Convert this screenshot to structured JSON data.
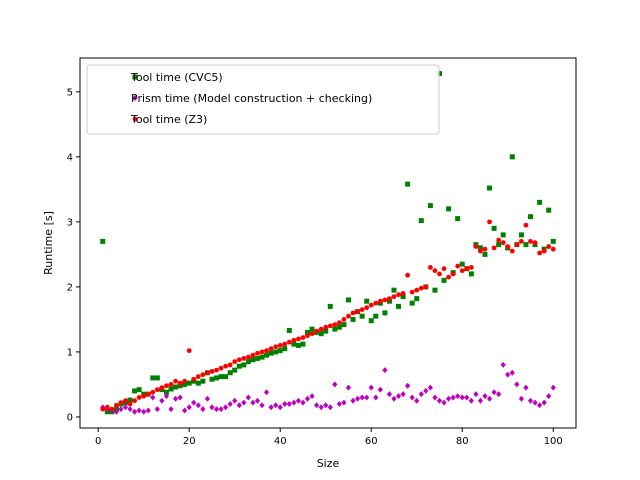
{
  "chart_data": {
    "type": "scatter",
    "xlabel": "Size",
    "ylabel": "Runtime [s]",
    "xlim": [
      -4,
      105
    ],
    "ylim": [
      -0.17,
      5.52
    ],
    "xticks": [
      0,
      20,
      40,
      60,
      80,
      100
    ],
    "yticks": [
      0,
      1,
      2,
      3,
      4,
      5
    ],
    "grid": false,
    "legend_position": "top-left",
    "series": [
      {
        "name": "Tool time (CVC5)",
        "marker": "square",
        "color": "#008000",
        "x": [
          1,
          2,
          3,
          4,
          5,
          6,
          7,
          8,
          9,
          10,
          11,
          12,
          13,
          14,
          15,
          16,
          17,
          18,
          19,
          20,
          21,
          22,
          23,
          24,
          25,
          26,
          27,
          28,
          29,
          30,
          31,
          32,
          33,
          34,
          35,
          36,
          37,
          38,
          39,
          40,
          41,
          42,
          43,
          44,
          45,
          46,
          47,
          48,
          49,
          50,
          51,
          52,
          53,
          54,
          55,
          56,
          57,
          58,
          59,
          60,
          61,
          62,
          63,
          64,
          65,
          66,
          67,
          68,
          69,
          70,
          71,
          72,
          73,
          74,
          75,
          76,
          77,
          78,
          79,
          80,
          81,
          82,
          83,
          84,
          85,
          86,
          87,
          88,
          89,
          90,
          91,
          92,
          93,
          94,
          95,
          96,
          97,
          98,
          99,
          100
        ],
        "y": [
          2.7,
          0.08,
          0.08,
          0.12,
          0.2,
          0.22,
          0.26,
          0.4,
          0.42,
          0.35,
          0.35,
          0.6,
          0.6,
          0.42,
          0.38,
          0.43,
          0.46,
          0.48,
          0.5,
          0.52,
          0.55,
          0.52,
          0.55,
          0.68,
          0.58,
          0.6,
          0.62,
          0.62,
          0.68,
          0.72,
          0.78,
          0.8,
          0.85,
          0.88,
          0.9,
          0.92,
          0.95,
          0.98,
          1.0,
          1.02,
          1.05,
          1.33,
          1.12,
          1.1,
          1.12,
          1.3,
          1.35,
          1.3,
          1.28,
          1.32,
          1.7,
          1.35,
          1.38,
          1.42,
          1.8,
          1.5,
          1.62,
          1.55,
          1.78,
          1.48,
          1.55,
          1.75,
          1.6,
          1.78,
          1.95,
          1.7,
          1.85,
          3.58,
          1.75,
          1.82,
          3.02,
          2.0,
          3.25,
          1.95,
          5.28,
          2.1,
          3.2,
          2.22,
          3.05,
          2.35,
          2.28,
          2.2,
          2.65,
          2.6,
          2.5,
          3.52,
          2.9,
          2.65,
          2.8,
          2.6,
          4.0,
          2.65,
          2.8,
          2.65,
          3.08,
          2.65,
          3.3,
          2.58,
          3.18,
          2.7
        ]
      },
      {
        "name": "Prism time (Model construction + checking)",
        "marker": "diamond",
        "color": "#bf00bf",
        "x": [
          1,
          2,
          3,
          4,
          5,
          6,
          7,
          8,
          9,
          10,
          11,
          12,
          13,
          14,
          15,
          16,
          17,
          18,
          19,
          20,
          21,
          22,
          23,
          24,
          25,
          26,
          27,
          28,
          29,
          30,
          31,
          32,
          33,
          34,
          35,
          36,
          37,
          38,
          39,
          40,
          41,
          42,
          43,
          44,
          45,
          46,
          47,
          48,
          49,
          50,
          51,
          52,
          53,
          54,
          55,
          56,
          57,
          58,
          59,
          60,
          61,
          62,
          63,
          64,
          65,
          66,
          67,
          68,
          69,
          70,
          71,
          72,
          73,
          74,
          75,
          76,
          77,
          78,
          79,
          80,
          81,
          82,
          83,
          84,
          85,
          86,
          87,
          88,
          89,
          90,
          91,
          92,
          93,
          94,
          95,
          96,
          97,
          98,
          99,
          100
        ],
        "y": [
          0.15,
          0.12,
          0.1,
          0.08,
          0.12,
          0.15,
          0.12,
          0.08,
          0.1,
          0.08,
          0.1,
          0.3,
          0.12,
          0.25,
          0.32,
          0.12,
          0.28,
          0.3,
          0.1,
          0.15,
          0.22,
          0.18,
          0.12,
          0.28,
          0.15,
          0.12,
          0.12,
          0.15,
          0.2,
          0.25,
          0.18,
          0.22,
          0.3,
          0.22,
          0.25,
          0.18,
          0.38,
          0.15,
          0.18,
          0.15,
          0.2,
          0.2,
          0.22,
          0.25,
          0.22,
          0.28,
          0.32,
          0.18,
          0.15,
          0.18,
          0.15,
          0.5,
          0.2,
          0.22,
          0.45,
          0.25,
          0.28,
          0.3,
          0.3,
          0.45,
          0.3,
          0.42,
          0.72,
          0.35,
          0.28,
          0.32,
          0.35,
          0.48,
          0.3,
          0.25,
          0.35,
          0.4,
          0.45,
          0.3,
          0.25,
          0.22,
          0.28,
          0.3,
          0.32,
          0.3,
          0.3,
          0.25,
          0.35,
          0.25,
          0.32,
          0.28,
          0.38,
          0.35,
          0.8,
          0.65,
          0.68,
          0.5,
          0.28,
          0.45,
          0.25,
          0.22,
          0.18,
          0.22,
          0.32,
          0.45
        ]
      },
      {
        "name": "Tool time (Z3)",
        "marker": "circle",
        "color": "#ff0000",
        "x": [
          1,
          2,
          3,
          4,
          5,
          6,
          7,
          8,
          9,
          10,
          11,
          12,
          13,
          14,
          15,
          16,
          17,
          18,
          19,
          20,
          21,
          22,
          23,
          24,
          25,
          26,
          27,
          28,
          29,
          30,
          31,
          32,
          33,
          34,
          35,
          36,
          37,
          38,
          39,
          40,
          41,
          42,
          43,
          44,
          45,
          46,
          47,
          48,
          49,
          50,
          51,
          52,
          53,
          54,
          55,
          56,
          57,
          58,
          59,
          60,
          61,
          62,
          63,
          64,
          65,
          66,
          67,
          68,
          69,
          70,
          71,
          72,
          73,
          74,
          75,
          76,
          77,
          78,
          79,
          80,
          81,
          82,
          83,
          84,
          85,
          86,
          87,
          88,
          89,
          90,
          91,
          92,
          93,
          94,
          95,
          96,
          97,
          98,
          99,
          100
        ],
        "y": [
          0.12,
          0.15,
          0.12,
          0.18,
          0.22,
          0.25,
          0.2,
          0.25,
          0.3,
          0.32,
          0.35,
          0.38,
          0.42,
          0.45,
          0.48,
          0.5,
          0.55,
          0.52,
          0.55,
          1.02,
          0.58,
          0.62,
          0.65,
          0.68,
          0.7,
          0.72,
          0.75,
          0.78,
          0.8,
          0.85,
          0.88,
          0.9,
          0.92,
          0.95,
          0.98,
          1.0,
          1.02,
          1.05,
          1.08,
          1.1,
          1.12,
          1.15,
          1.18,
          1.2,
          1.22,
          1.25,
          1.28,
          1.32,
          1.35,
          1.38,
          1.4,
          1.42,
          1.45,
          1.5,
          1.55,
          1.6,
          1.62,
          1.65,
          1.68,
          1.72,
          1.75,
          1.78,
          1.8,
          1.82,
          1.85,
          1.88,
          1.9,
          2.18,
          1.92,
          1.95,
          1.98,
          2.0,
          2.3,
          2.25,
          2.2,
          2.28,
          2.15,
          2.2,
          2.32,
          2.25,
          2.28,
          2.3,
          2.62,
          2.55,
          2.58,
          3.0,
          2.6,
          2.72,
          2.68,
          2.62,
          2.55,
          2.65,
          2.7,
          2.95,
          2.7,
          2.68,
          2.52,
          2.55,
          2.62,
          2.58
        ]
      }
    ]
  }
}
